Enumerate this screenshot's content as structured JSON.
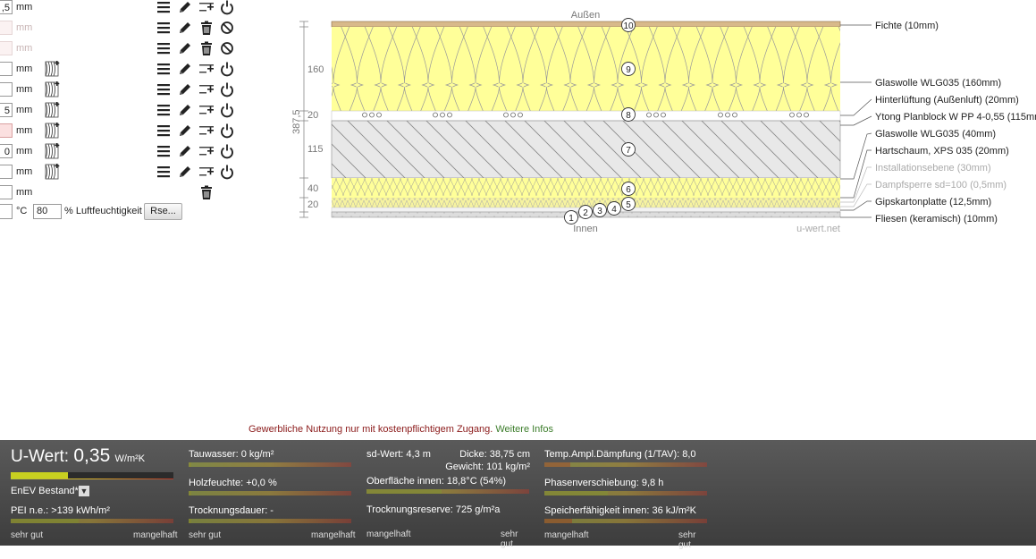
{
  "layers": [
    {
      "value": ",5",
      "unit": "mm",
      "state": "normal",
      "icons": [
        "menu-icon",
        "pencil-icon",
        "add-row-icon",
        "power-icon"
      ]
    },
    {
      "value": "",
      "unit": "mm",
      "state": "faint",
      "icons": [
        "menu-icon",
        "pencil-icon",
        "trash-icon",
        "ban-icon"
      ]
    },
    {
      "value": "",
      "unit": "mm",
      "state": "faint",
      "icons": [
        "menu-icon",
        "pencil-icon",
        "trash-icon",
        "ban-icon"
      ]
    },
    {
      "value": "",
      "unit": "mm",
      "state": "normal",
      "icons": [
        "material-icon",
        "menu-icon",
        "pencil-icon",
        "add-row-icon",
        "power-icon"
      ]
    },
    {
      "value": "",
      "unit": "mm",
      "state": "normal",
      "icons": [
        "material-icon",
        "menu-icon",
        "pencil-icon",
        "add-row-icon",
        "power-icon"
      ]
    },
    {
      "value": "5",
      "unit": "mm",
      "state": "normal",
      "icons": [
        "material-icon",
        "menu-icon",
        "pencil-icon",
        "add-row-icon",
        "power-icon"
      ]
    },
    {
      "value": "",
      "unit": "mm",
      "state": "pink",
      "icons": [
        "material-icon",
        "menu-icon",
        "pencil-icon",
        "add-row-icon",
        "power-icon"
      ]
    },
    {
      "value": "0",
      "unit": "mm",
      "state": "normal",
      "icons": [
        "material-icon",
        "menu-icon",
        "pencil-icon",
        "add-row-icon",
        "power-icon"
      ]
    },
    {
      "value": "",
      "unit": "mm",
      "state": "normal",
      "icons": [
        "material-icon",
        "menu-icon",
        "pencil-icon",
        "add-row-icon",
        "power-icon"
      ]
    },
    {
      "value": "",
      "unit": "mm",
      "state": "normal",
      "icons": [
        "trash-icon"
      ]
    }
  ],
  "climate": {
    "temp_unit": "°C",
    "humidity_value": "80",
    "humidity_label": "% Luftfeuchtigkeit",
    "rse_button": "Rse..."
  },
  "diagram": {
    "outside_label": "Außen",
    "inside_label": "Innen",
    "watermark": "u-wert.net",
    "total_thickness": "387,5",
    "dimension_labels": [
      "160",
      "20",
      "115",
      "40",
      "20"
    ],
    "legend": [
      {
        "text": "Fichte (10mm)",
        "faint": false
      },
      {
        "text": "Glaswolle WLG035 (160mm)",
        "faint": false
      },
      {
        "text": "Hinterlüftung (Außenluft) (20mm)",
        "faint": false
      },
      {
        "text": "Ytong Planblock W PP 4-0,55 (115mm)",
        "faint": false
      },
      {
        "text": "Glaswolle WLG035 (40mm)",
        "faint": false
      },
      {
        "text": "Hartschaum, XPS 035 (20mm)",
        "faint": false
      },
      {
        "text": "Installationsebene (30mm)",
        "faint": true
      },
      {
        "text": "Dampfsperre sd=100 (0,5mm)",
        "faint": true
      },
      {
        "text": "Gipskartonplatte (12,5mm)",
        "faint": false
      },
      {
        "text": "Fliesen (keramisch) (10mm)",
        "faint": false
      }
    ],
    "layer_numbers": [
      "10",
      "9",
      "8",
      "7",
      "6",
      "5",
      "4",
      "3",
      "2",
      "1"
    ]
  },
  "notice": {
    "text": "Gewerbliche Nutzung nur mit kostenpflichtigem Zugang.",
    "link": "Weitere Infos"
  },
  "results": {
    "u_value": {
      "label": "U-Wert:",
      "value": "0,35",
      "unit": "W/m²K",
      "fill": 0.35
    },
    "enev": "EnEV Bestand*",
    "pei": {
      "text": "PEI n.e.: >139 kWh/m²",
      "fill": 0.42
    },
    "tauwasser": {
      "text": "Tauwasser: 0 kg/m²",
      "fill": 0.01
    },
    "holzfeuchte": {
      "text": "Holzfeuchte: +0,0 %",
      "fill": 0.01
    },
    "trocknungsdauer": {
      "text": "Trocknungsdauer: -",
      "fill": 0.01
    },
    "sd_wert": "sd-Wert: 4,3 m",
    "dicke": "Dicke: 38,75 cm",
    "gewicht": "Gewicht: 101 kg/m²",
    "oberflaeche": {
      "text": "Oberfläche innen: 18,8°C (54%)",
      "fill": 0.46
    },
    "trocknungsreserve": {
      "text": "Trocknungsreserve: 725 g/m²a"
    },
    "temp_amp": {
      "text": "Temp.Ampl.Dämpfung (1/TAV): 8,0",
      "fill": 0.16
    },
    "phasen": {
      "text": "Phasenverschiebung: 9,8 h",
      "fill": 0.39
    },
    "speicher": {
      "text": "Speicherfähigkeit innen: 36 kJ/m²K",
      "fill": 0.17
    },
    "scale_good": "sehr gut",
    "scale_bad": "mangelhaft"
  }
}
